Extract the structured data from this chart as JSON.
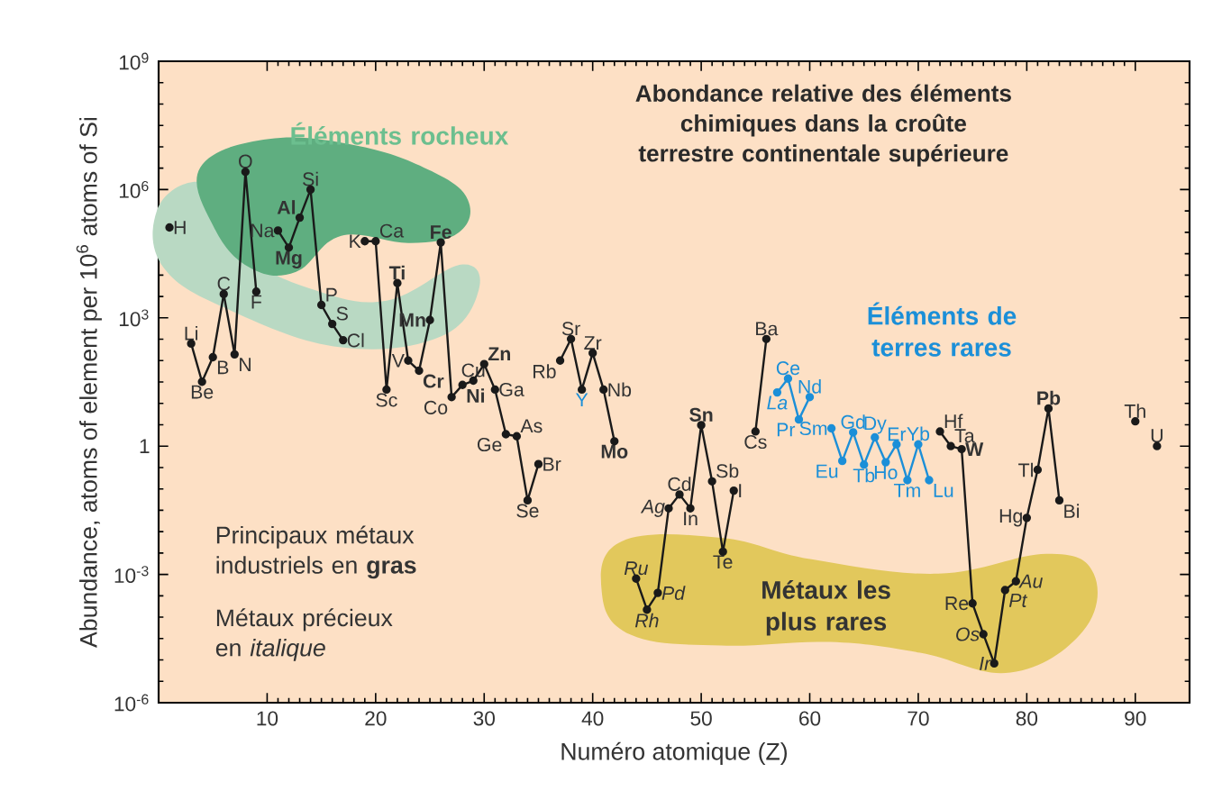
{
  "chart_data": {
    "type": "line",
    "title": "Abondance relative des éléments chimiques dans la croûte terrestre continentale supérieure",
    "xlabel": "Numéro atomique (Z)",
    "ylabel": "Abundance, atoms of element per 10$^{6}$ atoms of Si",
    "log": "y",
    "marker": "circle",
    "line_style": "solid",
    "xlim": [
      0,
      95
    ],
    "ylim": [
      1e-06,
      1000000000.0
    ],
    "xticks": [
      10,
      20,
      30,
      40,
      50,
      60,
      70,
      80,
      90
    ],
    "yticks": [
      {
        "value": 1e-06,
        "label": "10$^{-6}$"
      },
      {
        "value": 0.001,
        "label": "10$^{-3}$"
      },
      1,
      {
        "value": 1000.0,
        "label": "10$^{3}$"
      },
      {
        "value": 1000000.0,
        "label": "10$^{6}$"
      },
      {
        "value": 1000000000.0,
        "label": "10$^{9}$"
      }
    ],
    "series": [
      {
        "color": "#1a1a1a",
        "x": [
          1,
          2,
          3,
          4,
          5,
          6,
          7,
          8,
          9,
          10,
          11,
          12,
          13,
          14,
          15,
          16,
          17,
          18,
          19,
          20,
          21,
          22,
          23,
          24,
          25,
          26,
          27,
          28,
          29,
          30,
          31,
          32,
          33,
          34,
          35,
          36,
          37,
          38,
          39,
          40,
          41,
          42,
          43,
          44,
          45,
          46,
          47,
          48,
          49,
          50,
          51,
          52,
          53,
          54,
          55,
          56,
          57,
          58,
          59,
          60,
          61,
          62,
          63,
          64,
          65,
          66,
          67,
          68,
          69,
          70,
          71,
          72,
          73,
          74,
          75,
          76,
          77,
          78,
          79,
          80,
          81,
          82,
          83,
          84,
          85,
          86,
          87,
          88,
          89,
          90,
          91,
          92
        ],
        "values": [
          130000,
          null,
          250,
          32,
          120,
          3600,
          140,
          2600000,
          4100,
          null,
          110000,
          44000,
          220000,
          1000000,
          2000,
          720,
          300,
          null,
          62000,
          62000,
          21,
          6500,
          100,
          58,
          890,
          58000,
          14,
          27,
          34,
          83,
          21,
          1.9,
          1.7,
          0.054,
          0.38,
          null,
          100,
          320,
          21,
          150,
          21,
          1.3,
          null,
          0.0008,
          0.00015,
          0.00037,
          0.035,
          0.074,
          0.035,
          3.1,
          0.15,
          0.0034,
          0.091,
          null,
          2.2,
          320,
          null,
          null,
          null,
          null,
          null,
          null,
          null,
          null,
          null,
          null,
          null,
          null,
          null,
          null,
          null,
          2.2,
          1.0,
          0.85,
          0.00021,
          4e-05,
          8.3e-06,
          0.00043,
          0.00069,
          0.021,
          0.28,
          7.6,
          0.054,
          null,
          null,
          null,
          null,
          null,
          null,
          3.8,
          null,
          1.0
        ]
      },
      {
        "color": "#1b8fd8",
        "x": [
          57,
          58,
          59,
          60,
          61,
          62,
          63,
          64,
          65,
          66,
          67,
          68,
          69,
          70,
          71
        ],
        "values": [
          18,
          38,
          4.2,
          14,
          null,
          2.6,
          0.45,
          2.1,
          0.37,
          1.6,
          0.42,
          1.1,
          0.16,
          1.1,
          0.16
        ]
      }
    ],
    "annotations": [
      {
        "text": "H",
        "x": 1,
        "y": 130000
      },
      {
        "text": "Li",
        "x": 3,
        "y": 250
      },
      {
        "text": "Be",
        "x": 4,
        "y": 32
      },
      {
        "text": "B",
        "x": 5,
        "y": 120
      },
      {
        "text": "C",
        "x": 6,
        "y": 3600
      },
      {
        "text": "N",
        "x": 7,
        "y": 140
      },
      {
        "text": "O",
        "x": 8,
        "y": 2600000
      },
      {
        "text": "F",
        "x": 9,
        "y": 4100
      },
      {
        "text": "Na",
        "x": 11,
        "y": 110000
      },
      {
        "text": "Mg",
        "x": 12,
        "y": 44000
      },
      {
        "text": "Al",
        "x": 13,
        "y": 220000
      },
      {
        "text": "Si",
        "x": 14,
        "y": 1000000
      },
      {
        "text": "P",
        "x": 15,
        "y": 2000
      },
      {
        "text": "S",
        "x": 16,
        "y": 720
      },
      {
        "text": "Cl",
        "x": 17,
        "y": 300
      },
      {
        "text": "K",
        "x": 19,
        "y": 62000
      },
      {
        "text": "Ca",
        "x": 20,
        "y": 62000
      },
      {
        "text": "Sc",
        "x": 21,
        "y": 21
      },
      {
        "text": "Ti",
        "x": 22,
        "y": 6500
      },
      {
        "text": "V",
        "x": 23,
        "y": 100
      },
      {
        "text": "Cr",
        "x": 24,
        "y": 58
      },
      {
        "text": "Mn",
        "x": 25,
        "y": 890
      },
      {
        "text": "Fe",
        "x": 26,
        "y": 58000
      },
      {
        "text": "Co",
        "x": 27,
        "y": 14
      },
      {
        "text": "Ni",
        "x": 28,
        "y": 27
      },
      {
        "text": "Cu",
        "x": 29,
        "y": 34
      },
      {
        "text": "Zn",
        "x": 30,
        "y": 83
      },
      {
        "text": "Ga",
        "x": 31,
        "y": 21
      },
      {
        "text": "Ge",
        "x": 32,
        "y": 1.9
      },
      {
        "text": "As",
        "x": 33,
        "y": 1.7
      },
      {
        "text": "Se",
        "x": 34,
        "y": 0.054
      },
      {
        "text": "Br",
        "x": 35,
        "y": 0.38
      },
      {
        "text": "Rb",
        "x": 37,
        "y": 100
      },
      {
        "text": "Sr",
        "x": 38,
        "y": 320
      },
      {
        "text": "Y",
        "x": 39,
        "y": 21
      },
      {
        "text": "Zr",
        "x": 40,
        "y": 150
      },
      {
        "text": "Nb",
        "x": 41,
        "y": 21
      },
      {
        "text": "Mo",
        "x": 42,
        "y": 1.3
      },
      {
        "text": "Ru",
        "x": 44,
        "y": 0.0008
      },
      {
        "text": "Rh",
        "x": 45,
        "y": 0.00015
      },
      {
        "text": "Pd",
        "x": 46,
        "y": 0.00037
      },
      {
        "text": "Ag",
        "x": 47,
        "y": 0.035
      },
      {
        "text": "Cd",
        "x": 48,
        "y": 0.074
      },
      {
        "text": "In",
        "x": 49,
        "y": 0.035
      },
      {
        "text": "Sn",
        "x": 50,
        "y": 3.1
      },
      {
        "text": "Sb",
        "x": 51,
        "y": 0.15
      },
      {
        "text": "Te",
        "x": 52,
        "y": 0.0034
      },
      {
        "text": "I",
        "x": 53,
        "y": 0.091
      },
      {
        "text": "Cs",
        "x": 55,
        "y": 2.2
      },
      {
        "text": "Ba",
        "x": 56,
        "y": 320
      },
      {
        "text": "La",
        "x": 57,
        "y": 18
      },
      {
        "text": "Ce",
        "x": 58,
        "y": 38
      },
      {
        "text": "Pr",
        "x": 59,
        "y": 4.2
      },
      {
        "text": "Nd",
        "x": 60,
        "y": 14
      },
      {
        "text": "Sm",
        "x": 62,
        "y": 2.6
      },
      {
        "text": "Eu",
        "x": 63,
        "y": 0.45
      },
      {
        "text": "Gd",
        "x": 64,
        "y": 2.1
      },
      {
        "text": "Tb",
        "x": 65,
        "y": 0.37
      },
      {
        "text": "Dy",
        "x": 66,
        "y": 1.6
      },
      {
        "text": "Ho",
        "x": 67,
        "y": 0.42
      },
      {
        "text": "Er",
        "x": 68,
        "y": 1.1
      },
      {
        "text": "Tm",
        "x": 69,
        "y": 0.16
      },
      {
        "text": "Yb",
        "x": 70,
        "y": 1.1
      },
      {
        "text": "Lu",
        "x": 71,
        "y": 0.16
      },
      {
        "text": "Hf",
        "x": 72,
        "y": 2.2
      },
      {
        "text": "Ta",
        "x": 73,
        "y": 1.0
      },
      {
        "text": "W",
        "x": 74,
        "y": 0.85
      },
      {
        "text": "Re",
        "x": 75,
        "y": 0.00021
      },
      {
        "text": "Os",
        "x": 76,
        "y": 4e-05
      },
      {
        "text": "Ir",
        "x": 77,
        "y": 8.3e-06
      },
      {
        "text": "Pt",
        "x": 78,
        "y": 0.00043
      },
      {
        "text": "Au",
        "x": 79,
        "y": 0.00069
      },
      {
        "text": "Hg",
        "x": 80,
        "y": 0.021
      },
      {
        "text": "Tl",
        "x": 81,
        "y": 0.28
      },
      {
        "text": "Pb",
        "x": 82,
        "y": 7.6
      },
      {
        "text": "Bi",
        "x": 83,
        "y": 0.054
      },
      {
        "text": "Th",
        "x": 90,
        "y": 3.8
      },
      {
        "text": "U",
        "x": 92,
        "y": 1.0
      },
      "Éléments rocheux",
      "Éléments de terres rares",
      "Métaux les plus rares",
      "Principaux métaux industriels en **gras**",
      "Métaux précieux en *italique*"
    ]
  }
}
